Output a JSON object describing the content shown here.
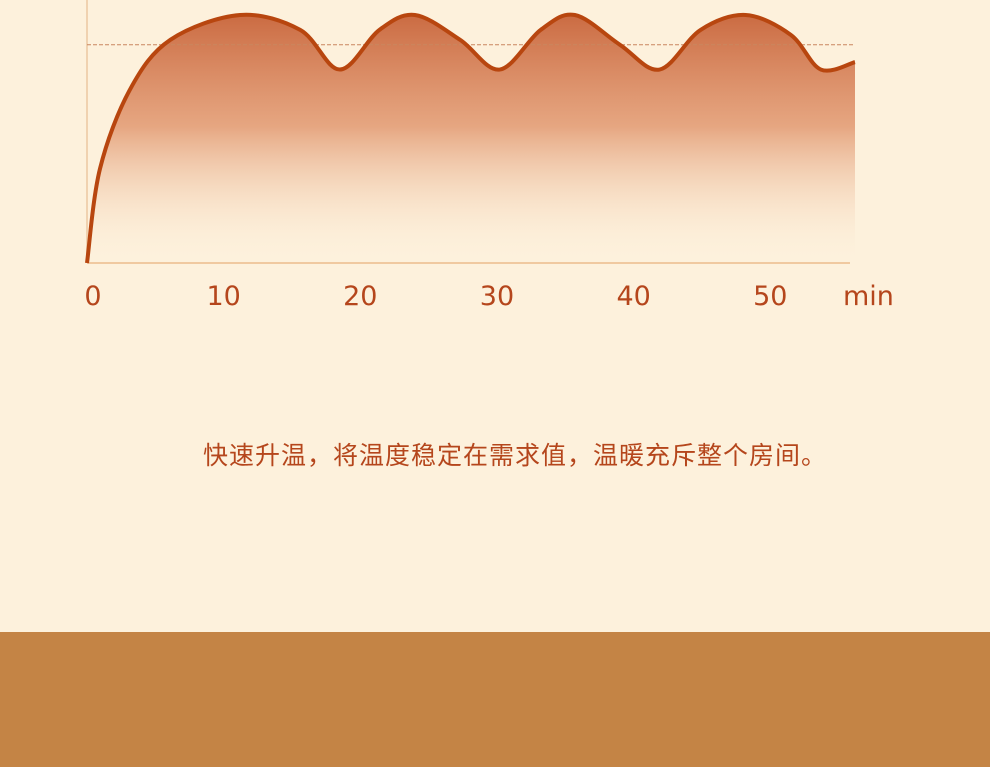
{
  "chart_data": {
    "type": "area",
    "title": "",
    "xlabel": "min",
    "ylabel": "",
    "xlim": [
      0,
      56.2
    ],
    "ylim": [
      0,
      100
    ],
    "x_ticks": [
      0,
      10,
      20,
      30,
      40,
      50
    ],
    "x_tick_labels": [
      "0",
      "10",
      "20",
      "30",
      "40",
      "50"
    ],
    "reference_line": 88,
    "grid": false,
    "series": [
      {
        "x": [
          0,
          0.95,
          3.15,
          6.1,
          11.2,
          15.6,
          18.5,
          21.4,
          24,
          27.3,
          30.2,
          33.2,
          35.7,
          39,
          41.9,
          44.9,
          48.2,
          51.5,
          53.7,
          56.2
        ],
        "y": [
          0,
          38,
          70,
          90,
          100,
          94,
          78,
          94,
          100,
          90,
          78,
          94,
          100,
          88,
          78,
          94,
          100,
          92,
          78,
          81
        ]
      }
    ],
    "colors": {
      "line": "#b8460f",
      "fill_top": "#c8643a",
      "axis": "#f0c9a0",
      "reference": "#c9865e"
    }
  },
  "caption": "快速升温，将温度稳定在需求值，温暖充斥整个房间。",
  "colors": {
    "background": "#fdf1dc",
    "band": "#c48445",
    "text": "#b5461c"
  }
}
